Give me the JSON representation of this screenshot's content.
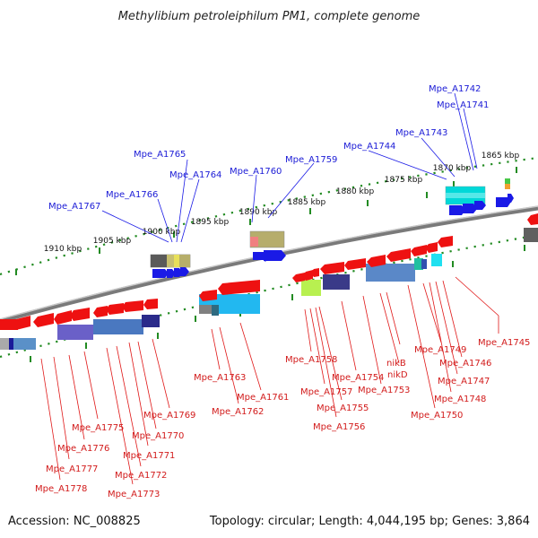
{
  "title": "Methylibium petroleiphilum PM1, complete genome",
  "footer": {
    "accession": "Accession: NC_008825",
    "topology": "Topology: circular; Length: 4,044,195 bp; Genes: 3,864"
  },
  "colors": {
    "forward": "#1a1ae6",
    "reverse": "#ee1111",
    "tick": "#228b22",
    "backbone": "#808080",
    "blue_label": "#1b1bd6",
    "red_label": "#d21b1b"
  },
  "kbp_ticks": [
    "1910 kbp",
    "1905 kbp",
    "1900 kbp",
    "1895 kbp",
    "1890 kbp",
    "1885 kbp",
    "1880 kbp",
    "1875 kbp",
    "1870 kbp",
    "1865 kbp"
  ],
  "forward_genes": [
    "Mpe_A1767",
    "Mpe_A1766",
    "Mpe_A1765",
    "Mpe_A1764",
    "Mpe_A1760",
    "Mpe_A1759",
    "Mpe_A1744",
    "Mpe_A1743",
    "Mpe_A1742",
    "Mpe_A1741"
  ],
  "reverse_genes": [
    "Mpe_A1778",
    "Mpe_A1777",
    "Mpe_A1776",
    "Mpe_A1775",
    "Mpe_A1773",
    "Mpe_A1772",
    "Mpe_A1771",
    "Mpe_A1770",
    "Mpe_A1769",
    "Mpe_A1763",
    "Mpe_A1762",
    "Mpe_A1761",
    "Mpe_A1758",
    "Mpe_A1757",
    "Mpe_A1756",
    "Mpe_A1755",
    "Mpe_A1754",
    "Mpe_A1753",
    "nikD",
    "nikB",
    "Mpe_A1750",
    "Mpe_A1749",
    "Mpe_A1748",
    "Mpe_A1747",
    "Mpe_A1746",
    "Mpe_A1745"
  ]
}
